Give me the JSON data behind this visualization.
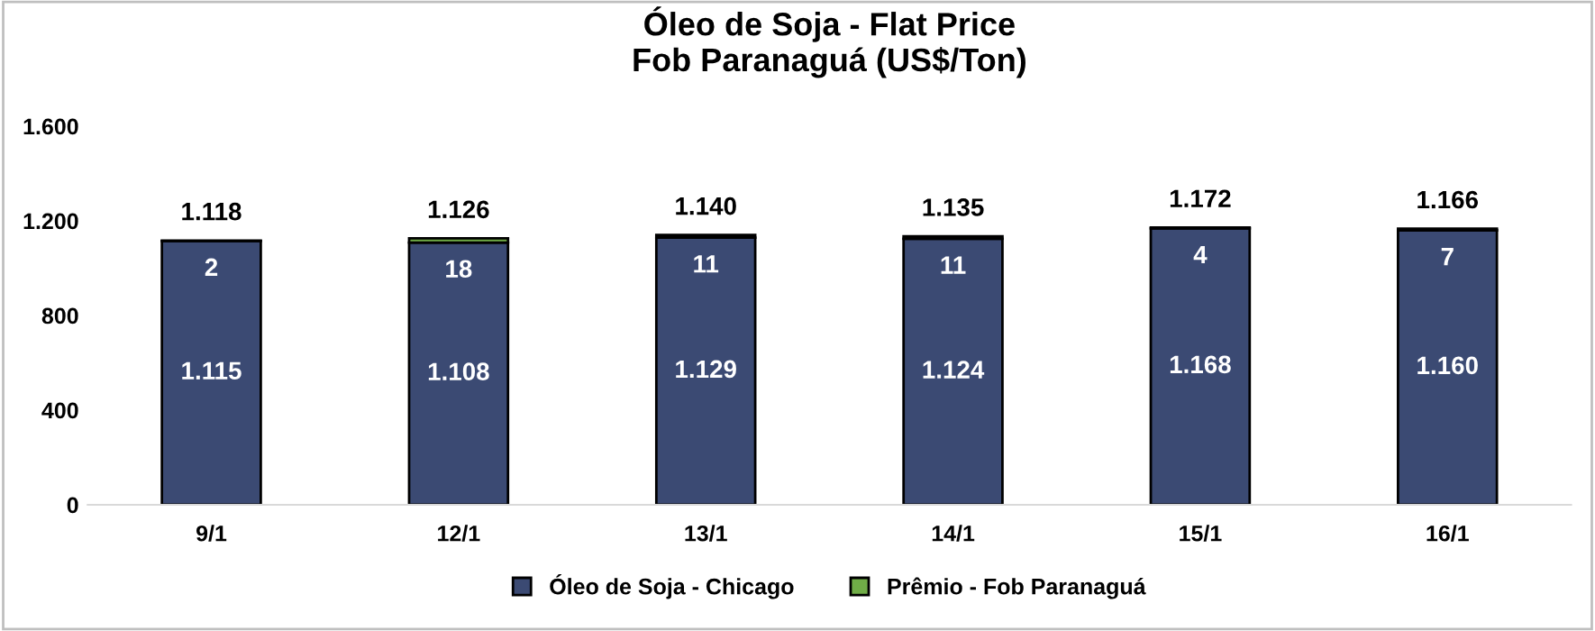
{
  "chart_data": {
    "type": "bar",
    "title": "Óleo de Soja - Flat Price\nFob Paranaguá (US$/Ton)",
    "categories": [
      "9/1",
      "12/1",
      "13/1",
      "14/1",
      "15/1",
      "16/1"
    ],
    "stacked": true,
    "series": [
      {
        "name": "Óleo de Soja - Chicago",
        "color": "#3b4a73",
        "values": [
          1115,
          1108,
          1129,
          1124,
          1168,
          1160
        ],
        "value_labels": [
          "1.115",
          "1.108",
          "1.129",
          "1.124",
          "1.168",
          "1.160"
        ]
      },
      {
        "name": "Prêmio - Fob Paranaguá",
        "color": "#70ad47",
        "values": [
          2,
          18,
          11,
          11,
          4,
          7
        ],
        "value_labels": [
          "2",
          "18",
          "11",
          "11",
          "4",
          "7"
        ]
      }
    ],
    "totals": [
      "1.118",
      "1.126",
      "1.140",
      "1.135",
      "1.172",
      "1.166"
    ],
    "ylim": [
      0,
      1600
    ],
    "yticks": [
      {
        "value": 0,
        "label": "0"
      },
      {
        "value": 400,
        "label": "400"
      },
      {
        "value": 800,
        "label": "800"
      },
      {
        "value": 1200,
        "label": "1.200"
      },
      {
        "value": 1600,
        "label": "1.600"
      }
    ],
    "grid": false,
    "legend": "bottom"
  }
}
